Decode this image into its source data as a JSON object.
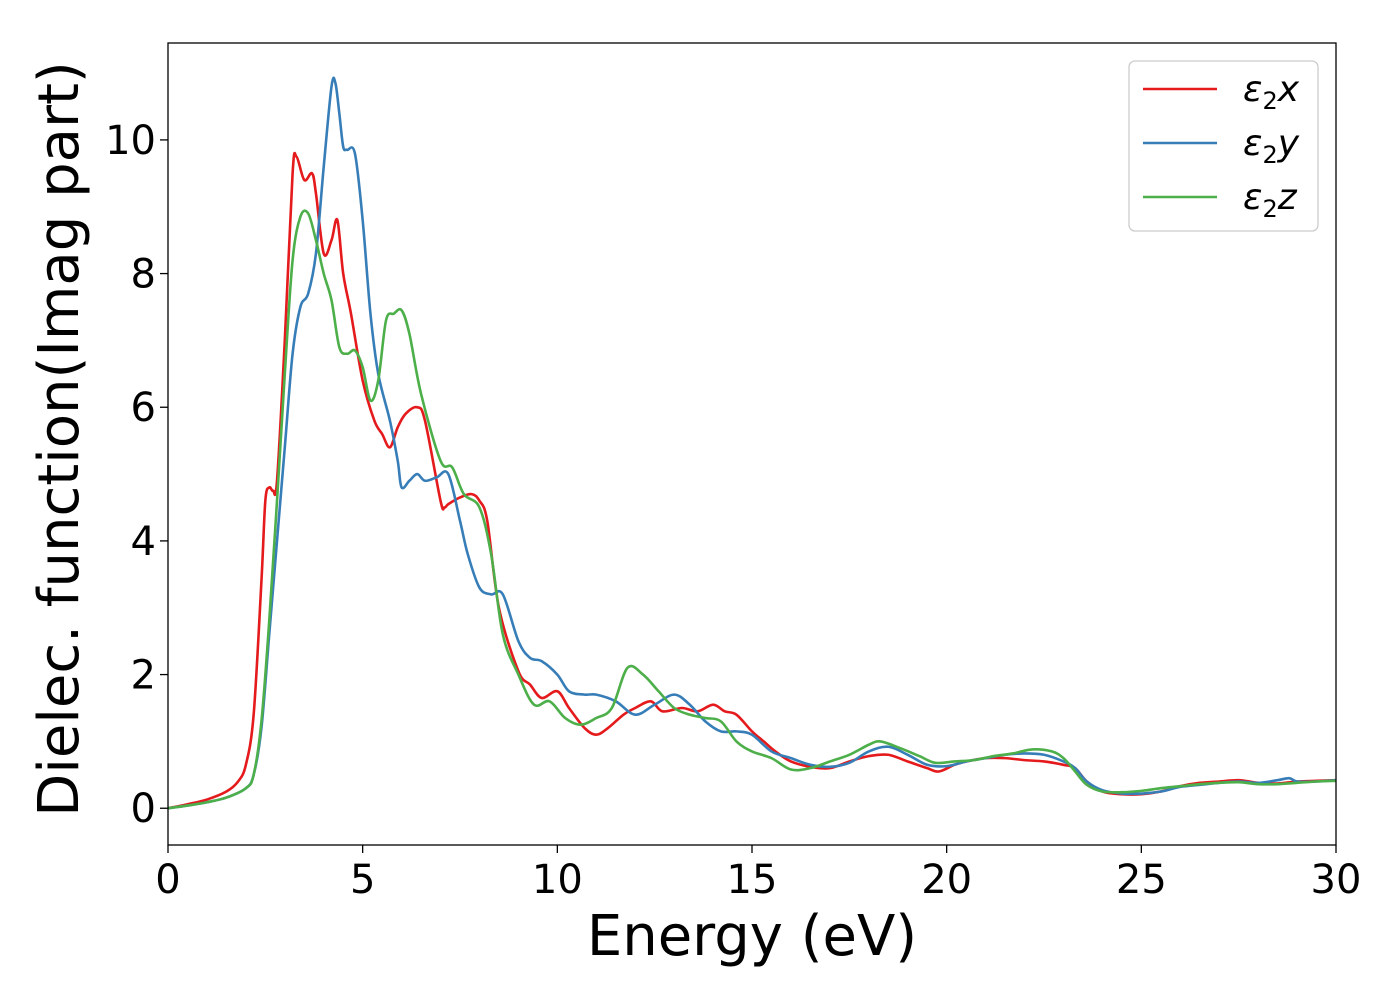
{
  "chart_data": {
    "type": "line",
    "title": "",
    "xlabel": "Energy (eV)",
    "ylabel": "Dielec. function(Imag part)",
    "xlim": [
      0,
      30
    ],
    "ylim": [
      -0.55,
      11.45
    ],
    "xticks": [
      0,
      5,
      10,
      15,
      20,
      25,
      30
    ],
    "yticks": [
      0,
      2,
      4,
      6,
      8,
      10
    ],
    "grid": false,
    "legend_position": "top-right",
    "series": [
      {
        "name": "ε2x",
        "legend": {
          "main": "ε",
          "sub": "2",
          "suffix": "x"
        },
        "color": "#e41a1c",
        "x": [
          0,
          0.5,
          1.0,
          1.5,
          1.8,
          2.0,
          2.2,
          2.4,
          2.5,
          2.6,
          2.7,
          2.8,
          3.0,
          3.2,
          3.3,
          3.5,
          3.7,
          3.8,
          4.0,
          4.2,
          4.35,
          4.5,
          4.7,
          5.0,
          5.3,
          5.5,
          5.7,
          5.9,
          6.1,
          6.4,
          6.6,
          7.0,
          7.1,
          7.2,
          7.5,
          7.8,
          8.0,
          8.2,
          8.5,
          9.0,
          9.3,
          9.6,
          10.0,
          10.3,
          10.7,
          11.0,
          11.3,
          11.7,
          12.0,
          12.4,
          12.7,
          13.2,
          13.6,
          14.0,
          14.3,
          14.6,
          15.0,
          15.3,
          15.6,
          16.0,
          16.5,
          17.0,
          17.5,
          18.0,
          18.5,
          19.0,
          19.5,
          19.8,
          20.2,
          20.5,
          21.0,
          21.5,
          22.0,
          22.5,
          23.0,
          23.3,
          23.6,
          24.0,
          24.5,
          25.0,
          25.5,
          26.0,
          26.5,
          27.0,
          27.5,
          28.0,
          28.5,
          29.0,
          29.5,
          30.0
        ],
        "values": [
          0.0,
          0.06,
          0.13,
          0.25,
          0.4,
          0.65,
          1.4,
          3.4,
          4.6,
          4.8,
          4.75,
          4.9,
          7.0,
          9.5,
          9.75,
          9.4,
          9.5,
          9.2,
          8.3,
          8.5,
          8.8,
          8.0,
          7.4,
          6.4,
          5.8,
          5.6,
          5.4,
          5.7,
          5.9,
          6.0,
          5.8,
          4.6,
          4.5,
          4.55,
          4.65,
          4.7,
          4.6,
          4.3,
          3.0,
          2.05,
          1.85,
          1.65,
          1.75,
          1.5,
          1.2,
          1.1,
          1.2,
          1.4,
          1.5,
          1.6,
          1.45,
          1.5,
          1.45,
          1.55,
          1.45,
          1.4,
          1.15,
          1.0,
          0.85,
          0.7,
          0.62,
          0.6,
          0.7,
          0.78,
          0.8,
          0.7,
          0.6,
          0.55,
          0.65,
          0.7,
          0.75,
          0.75,
          0.72,
          0.7,
          0.65,
          0.6,
          0.4,
          0.25,
          0.21,
          0.21,
          0.25,
          0.33,
          0.38,
          0.4,
          0.42,
          0.38,
          0.37,
          0.4,
          0.41,
          0.42
        ]
      },
      {
        "name": "ε2y",
        "legend": {
          "main": "ε",
          "sub": "2",
          "suffix": "y"
        },
        "color": "#377eb8",
        "x": [
          0,
          0.5,
          1.0,
          1.5,
          2.0,
          2.2,
          2.4,
          2.6,
          2.8,
          3.0,
          3.2,
          3.4,
          3.6,
          3.8,
          4.0,
          4.2,
          4.3,
          4.4,
          4.5,
          4.6,
          4.8,
          5.0,
          5.2,
          5.4,
          5.7,
          5.9,
          6.0,
          6.2,
          6.4,
          6.6,
          6.9,
          7.2,
          7.5,
          7.7,
          8.0,
          8.3,
          8.6,
          9.0,
          9.3,
          9.6,
          10.0,
          10.3,
          10.7,
          11.0,
          11.5,
          12.0,
          12.5,
          13.0,
          13.4,
          13.8,
          14.2,
          14.6,
          15.0,
          15.5,
          16.0,
          16.5,
          17.0,
          17.5,
          18.0,
          18.5,
          19.0,
          19.5,
          20.0,
          20.5,
          21.0,
          21.5,
          22.0,
          22.5,
          23.0,
          23.3,
          23.6,
          24.0,
          24.5,
          25.0,
          25.5,
          26.0,
          26.5,
          27.0,
          27.5,
          28.0,
          28.5,
          28.8,
          29.0,
          29.5,
          30.0
        ],
        "values": [
          0.0,
          0.04,
          0.09,
          0.16,
          0.3,
          0.5,
          1.2,
          2.6,
          4.0,
          5.4,
          6.8,
          7.5,
          7.7,
          8.3,
          9.6,
          10.8,
          10.85,
          10.4,
          9.9,
          9.85,
          9.8,
          8.8,
          7.4,
          6.5,
          5.8,
          5.2,
          4.8,
          4.9,
          5.0,
          4.9,
          4.95,
          5.0,
          4.3,
          3.8,
          3.3,
          3.2,
          3.2,
          2.5,
          2.25,
          2.2,
          2.0,
          1.75,
          1.7,
          1.7,
          1.6,
          1.4,
          1.55,
          1.7,
          1.55,
          1.3,
          1.15,
          1.15,
          1.1,
          0.85,
          0.75,
          0.65,
          0.62,
          0.68,
          0.85,
          0.92,
          0.8,
          0.65,
          0.63,
          0.7,
          0.75,
          0.8,
          0.82,
          0.8,
          0.7,
          0.6,
          0.4,
          0.27,
          0.22,
          0.22,
          0.25,
          0.32,
          0.35,
          0.38,
          0.4,
          0.38,
          0.42,
          0.45,
          0.4,
          0.4,
          0.42
        ]
      },
      {
        "name": "ε2z",
        "legend": {
          "main": "ε",
          "sub": "2",
          "suffix": "z"
        },
        "color": "#4daf4a",
        "x": [
          0,
          0.5,
          1.0,
          1.5,
          2.0,
          2.2,
          2.4,
          2.6,
          2.8,
          3.0,
          3.2,
          3.4,
          3.6,
          3.8,
          4.0,
          4.2,
          4.4,
          4.6,
          4.8,
          5.0,
          5.2,
          5.4,
          5.6,
          5.8,
          6.0,
          6.2,
          6.5,
          7.0,
          7.3,
          7.6,
          8.0,
          8.3,
          8.6,
          9.0,
          9.4,
          9.8,
          10.2,
          10.6,
          11.0,
          11.4,
          11.8,
          12.2,
          12.6,
          13.0,
          13.4,
          13.8,
          14.2,
          14.6,
          15.0,
          15.5,
          16.0,
          16.5,
          17.0,
          17.5,
          18.0,
          18.3,
          18.8,
          19.3,
          19.7,
          20.2,
          20.7,
          21.2,
          21.7,
          22.2,
          22.7,
          23.0,
          23.3,
          23.6,
          24.0,
          24.5,
          25.0,
          25.5,
          26.0,
          26.5,
          27.0,
          27.5,
          28.0,
          28.5,
          29.0,
          29.5,
          30.0
        ],
        "values": [
          0.0,
          0.04,
          0.09,
          0.16,
          0.3,
          0.5,
          1.3,
          2.8,
          4.6,
          6.5,
          8.2,
          8.85,
          8.9,
          8.5,
          8.0,
          7.6,
          6.9,
          6.8,
          6.85,
          6.6,
          6.1,
          6.4,
          7.3,
          7.4,
          7.45,
          7.1,
          6.2,
          5.2,
          5.1,
          4.7,
          4.5,
          3.8,
          2.6,
          2.0,
          1.55,
          1.6,
          1.35,
          1.25,
          1.35,
          1.5,
          2.1,
          2.0,
          1.75,
          1.5,
          1.4,
          1.35,
          1.3,
          1.0,
          0.85,
          0.75,
          0.58,
          0.6,
          0.7,
          0.8,
          0.95,
          1.0,
          0.9,
          0.78,
          0.68,
          0.7,
          0.72,
          0.78,
          0.82,
          0.88,
          0.85,
          0.75,
          0.55,
          0.35,
          0.25,
          0.24,
          0.26,
          0.3,
          0.33,
          0.36,
          0.38,
          0.39,
          0.36,
          0.36,
          0.38,
          0.4,
          0.41
        ]
      }
    ]
  }
}
